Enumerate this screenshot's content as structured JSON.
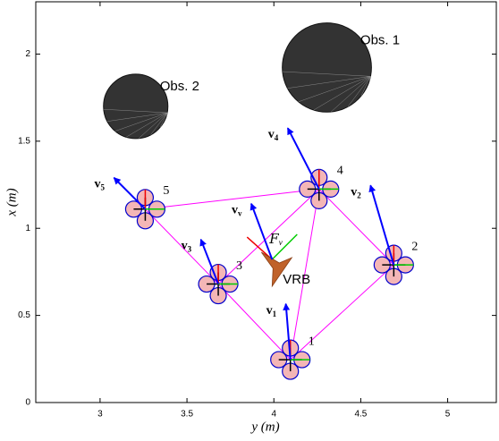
{
  "chart_data": {
    "type": "formation",
    "x_label": "y (m)",
    "y_label": "x (m)",
    "xlim": [
      2.63,
      5.28
    ],
    "ylim": [
      0,
      2.3
    ],
    "xticks": [
      3,
      3.5,
      4,
      4.5,
      5
    ],
    "yticks": [
      0,
      0.5,
      1,
      1.5,
      2
    ],
    "obstacles": [
      {
        "label": "Obs. 1",
        "y": 4.305,
        "x": 1.923,
        "r": 0.256
      },
      {
        "label": "Obs. 2",
        "y": 3.205,
        "x": 1.7,
        "r": 0.185
      }
    ],
    "robots": [
      {
        "label": "1",
        "y": 4.095,
        "x": 0.246,
        "v_name": "v",
        "v_sub": "1",
        "vy": -0.026,
        "vx": 0.32
      },
      {
        "label": "2",
        "y": 4.69,
        "x": 0.79,
        "v_name": "v",
        "v_sub": "2",
        "vy": -0.134,
        "vx": 0.456
      },
      {
        "label": "3",
        "y": 3.68,
        "x": 0.68,
        "v_name": "v",
        "v_sub": "3",
        "vy": -0.1,
        "vx": 0.256
      },
      {
        "label": "4",
        "y": 4.26,
        "x": 1.225,
        "v_name": "v",
        "v_sub": "4",
        "vy": -0.18,
        "vx": 0.35
      },
      {
        "label": "5",
        "y": 3.26,
        "x": 1.11,
        "v_name": "v",
        "v_sub": "5",
        "vy": -0.18,
        "vx": 0.18
      }
    ],
    "edges": [
      [
        1,
        2
      ],
      [
        1,
        3
      ],
      [
        1,
        4
      ],
      [
        2,
        4
      ],
      [
        3,
        5
      ],
      [
        4,
        5
      ],
      [
        3,
        4
      ]
    ],
    "vrb": {
      "label": "VRB",
      "y": 3.99,
      "x": 0.77,
      "v_name": "v",
      "v_sub": "v",
      "vy": -0.12,
      "vx": 0.32,
      "frame_name": "F",
      "frame_sub": "v"
    },
    "edge_color": "#ff00ff",
    "arrow_color": "#0000ff",
    "obstacle_color": "#333333",
    "vrb_color": "#c0622a"
  }
}
